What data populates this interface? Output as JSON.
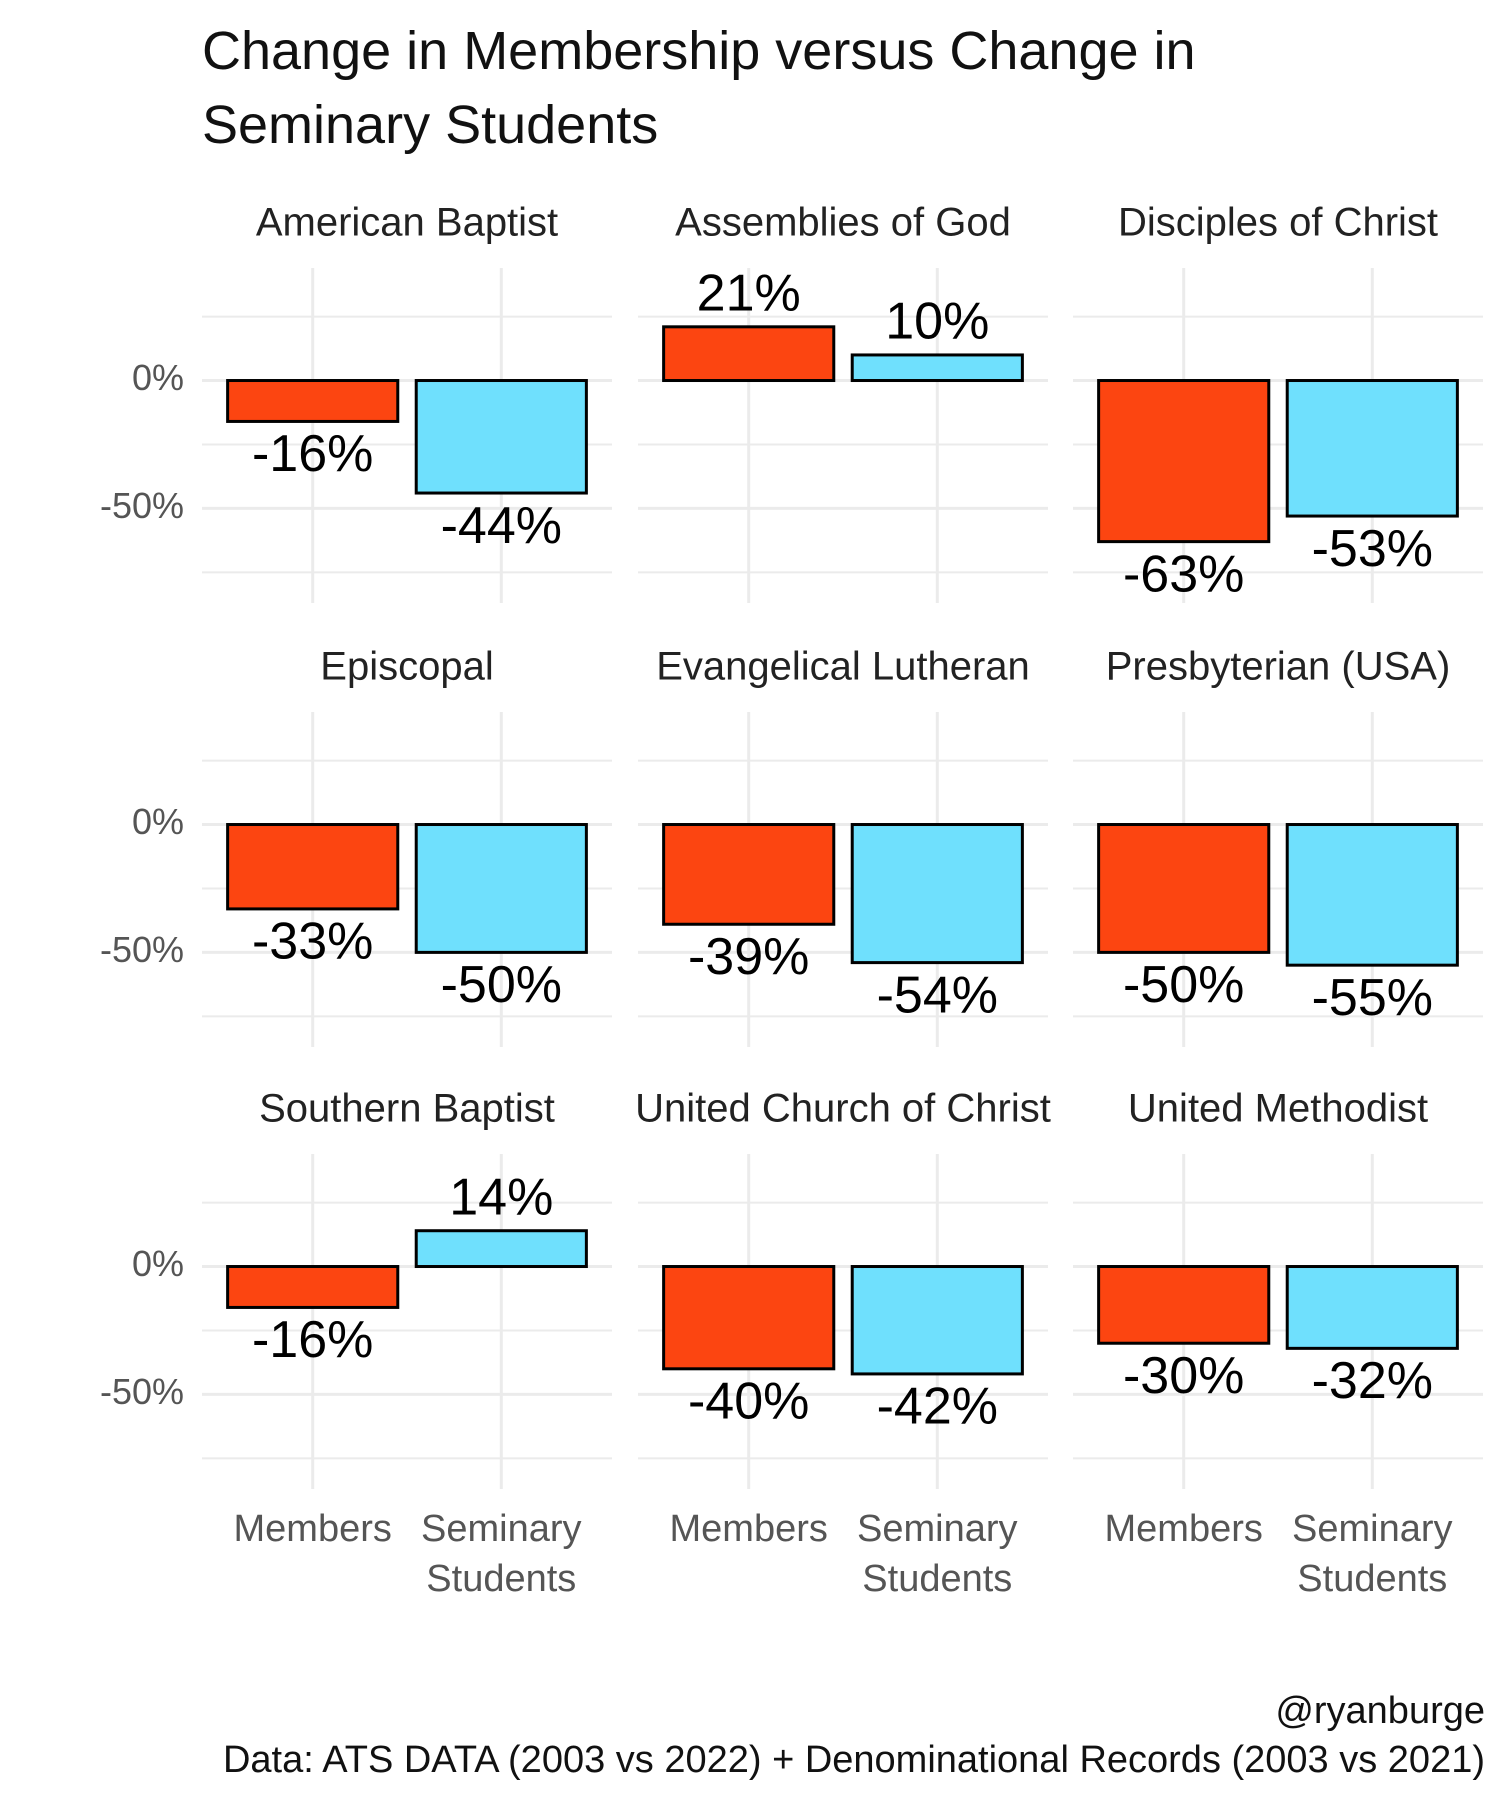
{
  "title": "Change in Membership versus Change in Seminary Students",
  "credit": "@ryanburge",
  "caption": "Data: ATS DATA (2003 vs 2022) + Denominational Records (2003 vs 2021)",
  "chart_data": {
    "type": "bar",
    "categories": [
      "Members",
      "Seminary Students"
    ],
    "colors": [
      "#fc4511",
      "#6fe0fd"
    ],
    "ylim": [
      -87,
      44
    ],
    "yticks": [
      {
        "value": 0,
        "label": "0%"
      },
      {
        "value": -50,
        "label": "-50%"
      }
    ],
    "grid": true,
    "facets": [
      {
        "title": "American Baptist",
        "values": [
          -16,
          -44
        ],
        "value_labels": [
          "-16%",
          "-44%"
        ]
      },
      {
        "title": "Assemblies of God",
        "values": [
          21,
          10
        ],
        "value_labels": [
          "21%",
          "10%"
        ]
      },
      {
        "title": "Disciples of Christ",
        "values": [
          -63,
          -53
        ],
        "value_labels": [
          "-63%",
          "-53%"
        ]
      },
      {
        "title": "Episcopal",
        "values": [
          -33,
          -50
        ],
        "value_labels": [
          "-33%",
          "-50%"
        ]
      },
      {
        "title": "Evangelical Lutheran",
        "values": [
          -39,
          -54
        ],
        "value_labels": [
          "-39%",
          "-54%"
        ]
      },
      {
        "title": "Presbyterian (USA)",
        "values": [
          -50,
          -55
        ],
        "value_labels": [
          "-50%",
          "-55%"
        ]
      },
      {
        "title": "Southern Baptist",
        "values": [
          -16,
          14
        ],
        "value_labels": [
          "-16%",
          "14%"
        ]
      },
      {
        "title": "United Church of Christ",
        "values": [
          -40,
          -42
        ],
        "value_labels": [
          "-40%",
          "-42%"
        ]
      },
      {
        "title": "United Methodist",
        "values": [
          -30,
          -32
        ],
        "value_labels": [
          "-30%",
          "-32%"
        ]
      }
    ]
  }
}
